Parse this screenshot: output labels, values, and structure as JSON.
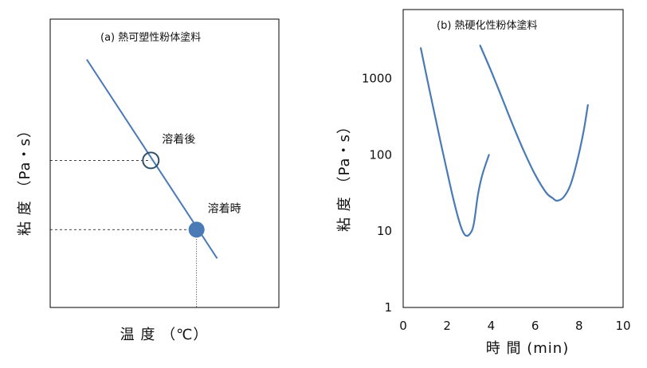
{
  "colors": {
    "line": "#4a7ab5",
    "marker_fill": "#4a7ab5",
    "marker_hollow": "#2f4f68",
    "axis": "#000000",
    "guide": "#000000"
  },
  "chart_data": [
    {
      "id": "a",
      "type": "line",
      "title": "(a) 熱可塑性粉体塗料",
      "xlabel": "温 度 （℃）",
      "ylabel": "粘 度 （Pa・s）",
      "xlim": [
        0,
        1
      ],
      "ylim": [
        0,
        1
      ],
      "ticks": false,
      "grid": false,
      "series": [
        {
          "x": [
            0.16,
            0.73
          ],
          "y": [
            0.86,
            0.17
          ]
        }
      ],
      "annotations": [
        {
          "label": "溶着後",
          "x": 0.44,
          "y": 0.51,
          "marker": "hollow-circle"
        },
        {
          "label": "溶着時",
          "x": 0.64,
          "y": 0.27,
          "marker": "filled-circle"
        }
      ]
    },
    {
      "id": "b",
      "type": "line",
      "title": "(b) 熱硬化性粉体塗料",
      "xlabel": "時 間 (min)",
      "ylabel": "粘 度 （Pa・s）",
      "xlim": [
        0,
        10
      ],
      "ylim": [
        1,
        8000
      ],
      "yscale": "log",
      "xticks": [
        0,
        2,
        4,
        6,
        8,
        10
      ],
      "yticks": [
        1,
        10,
        100,
        1000
      ],
      "ytick_labels": [
        "1",
        "10",
        "100",
        "1000"
      ],
      "grid": false,
      "series": [
        {
          "x": [
            0.8,
            1.2,
            1.6,
            2.0,
            2.3,
            2.6,
            2.8,
            3.0,
            3.2,
            3.4,
            3.6,
            3.9
          ],
          "y": [
            2500,
            700,
            200,
            60,
            25,
            12,
            9,
            9,
            12,
            30,
            55,
            100
          ]
        },
        {
          "x": [
            3.5,
            4.0,
            4.5,
            5.0,
            5.5,
            6.0,
            6.5,
            6.8,
            7.0,
            7.3,
            7.6,
            7.9,
            8.2,
            8.4
          ],
          "y": [
            2700,
            1250,
            550,
            240,
            110,
            55,
            32,
            27,
            25,
            28,
            40,
            80,
            200,
            450
          ]
        }
      ]
    }
  ]
}
